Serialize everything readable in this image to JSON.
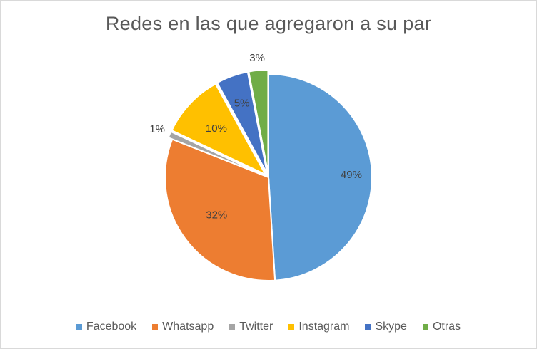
{
  "chart_data": {
    "type": "pie",
    "title": "Redes en las que agregaron a su par",
    "categories": [
      "Facebook",
      "Whatsapp",
      "Twitter",
      "Instagram",
      "Skype",
      "Otras"
    ],
    "values": [
      49,
      32,
      1,
      10,
      5,
      3
    ],
    "data_labels": [
      "49%",
      "32%",
      "1%",
      "10%",
      "5%",
      "3%"
    ],
    "colors": [
      "#5b9bd5",
      "#ed7d31",
      "#a5a5a5",
      "#ffc000",
      "#4472c4",
      "#70ad47"
    ],
    "exploded": [
      false,
      false,
      true,
      true,
      true,
      true
    ],
    "legend_position": "bottom"
  }
}
